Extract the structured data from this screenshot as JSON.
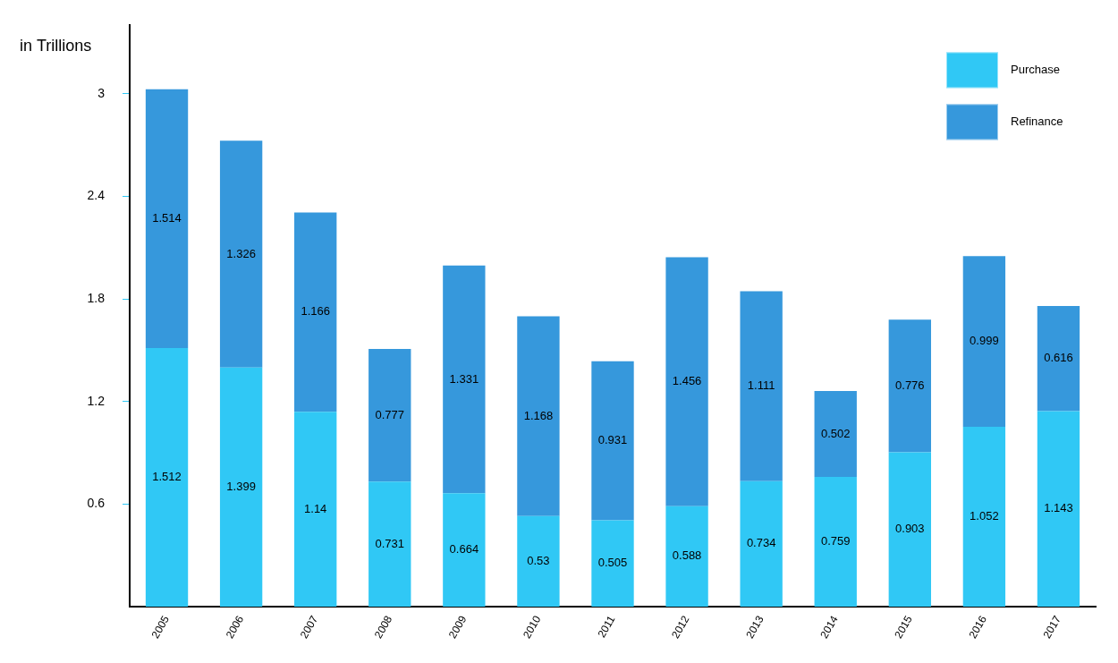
{
  "chart_data": {
    "type": "bar",
    "ylabel": "in Trillions",
    "categories": [
      "2005",
      "2006",
      "2007",
      "2008",
      "2009",
      "2010",
      "2011",
      "2012",
      "2013",
      "2014",
      "2015",
      "2016",
      "2017"
    ],
    "series": [
      {
        "name": "Purchase",
        "color": "#30c8f5",
        "values": [
          1.512,
          1.399,
          1.14,
          0.731,
          0.664,
          0.53,
          0.505,
          0.588,
          0.734,
          0.759,
          0.903,
          1.052,
          1.143
        ]
      },
      {
        "name": "Refinance",
        "color": "#3698dc",
        "values": [
          1.514,
          1.326,
          1.166,
          0.777,
          1.331,
          1.168,
          0.931,
          1.456,
          1.111,
          0.502,
          0.776,
          0.999,
          0.616
        ]
      }
    ],
    "ylim": [
      0,
      3.4
    ],
    "yticks": [
      0.6,
      1.2,
      1.8,
      2.4,
      3
    ],
    "stacked": true,
    "data_labels": true,
    "grid": false,
    "legend": "top-right"
  }
}
